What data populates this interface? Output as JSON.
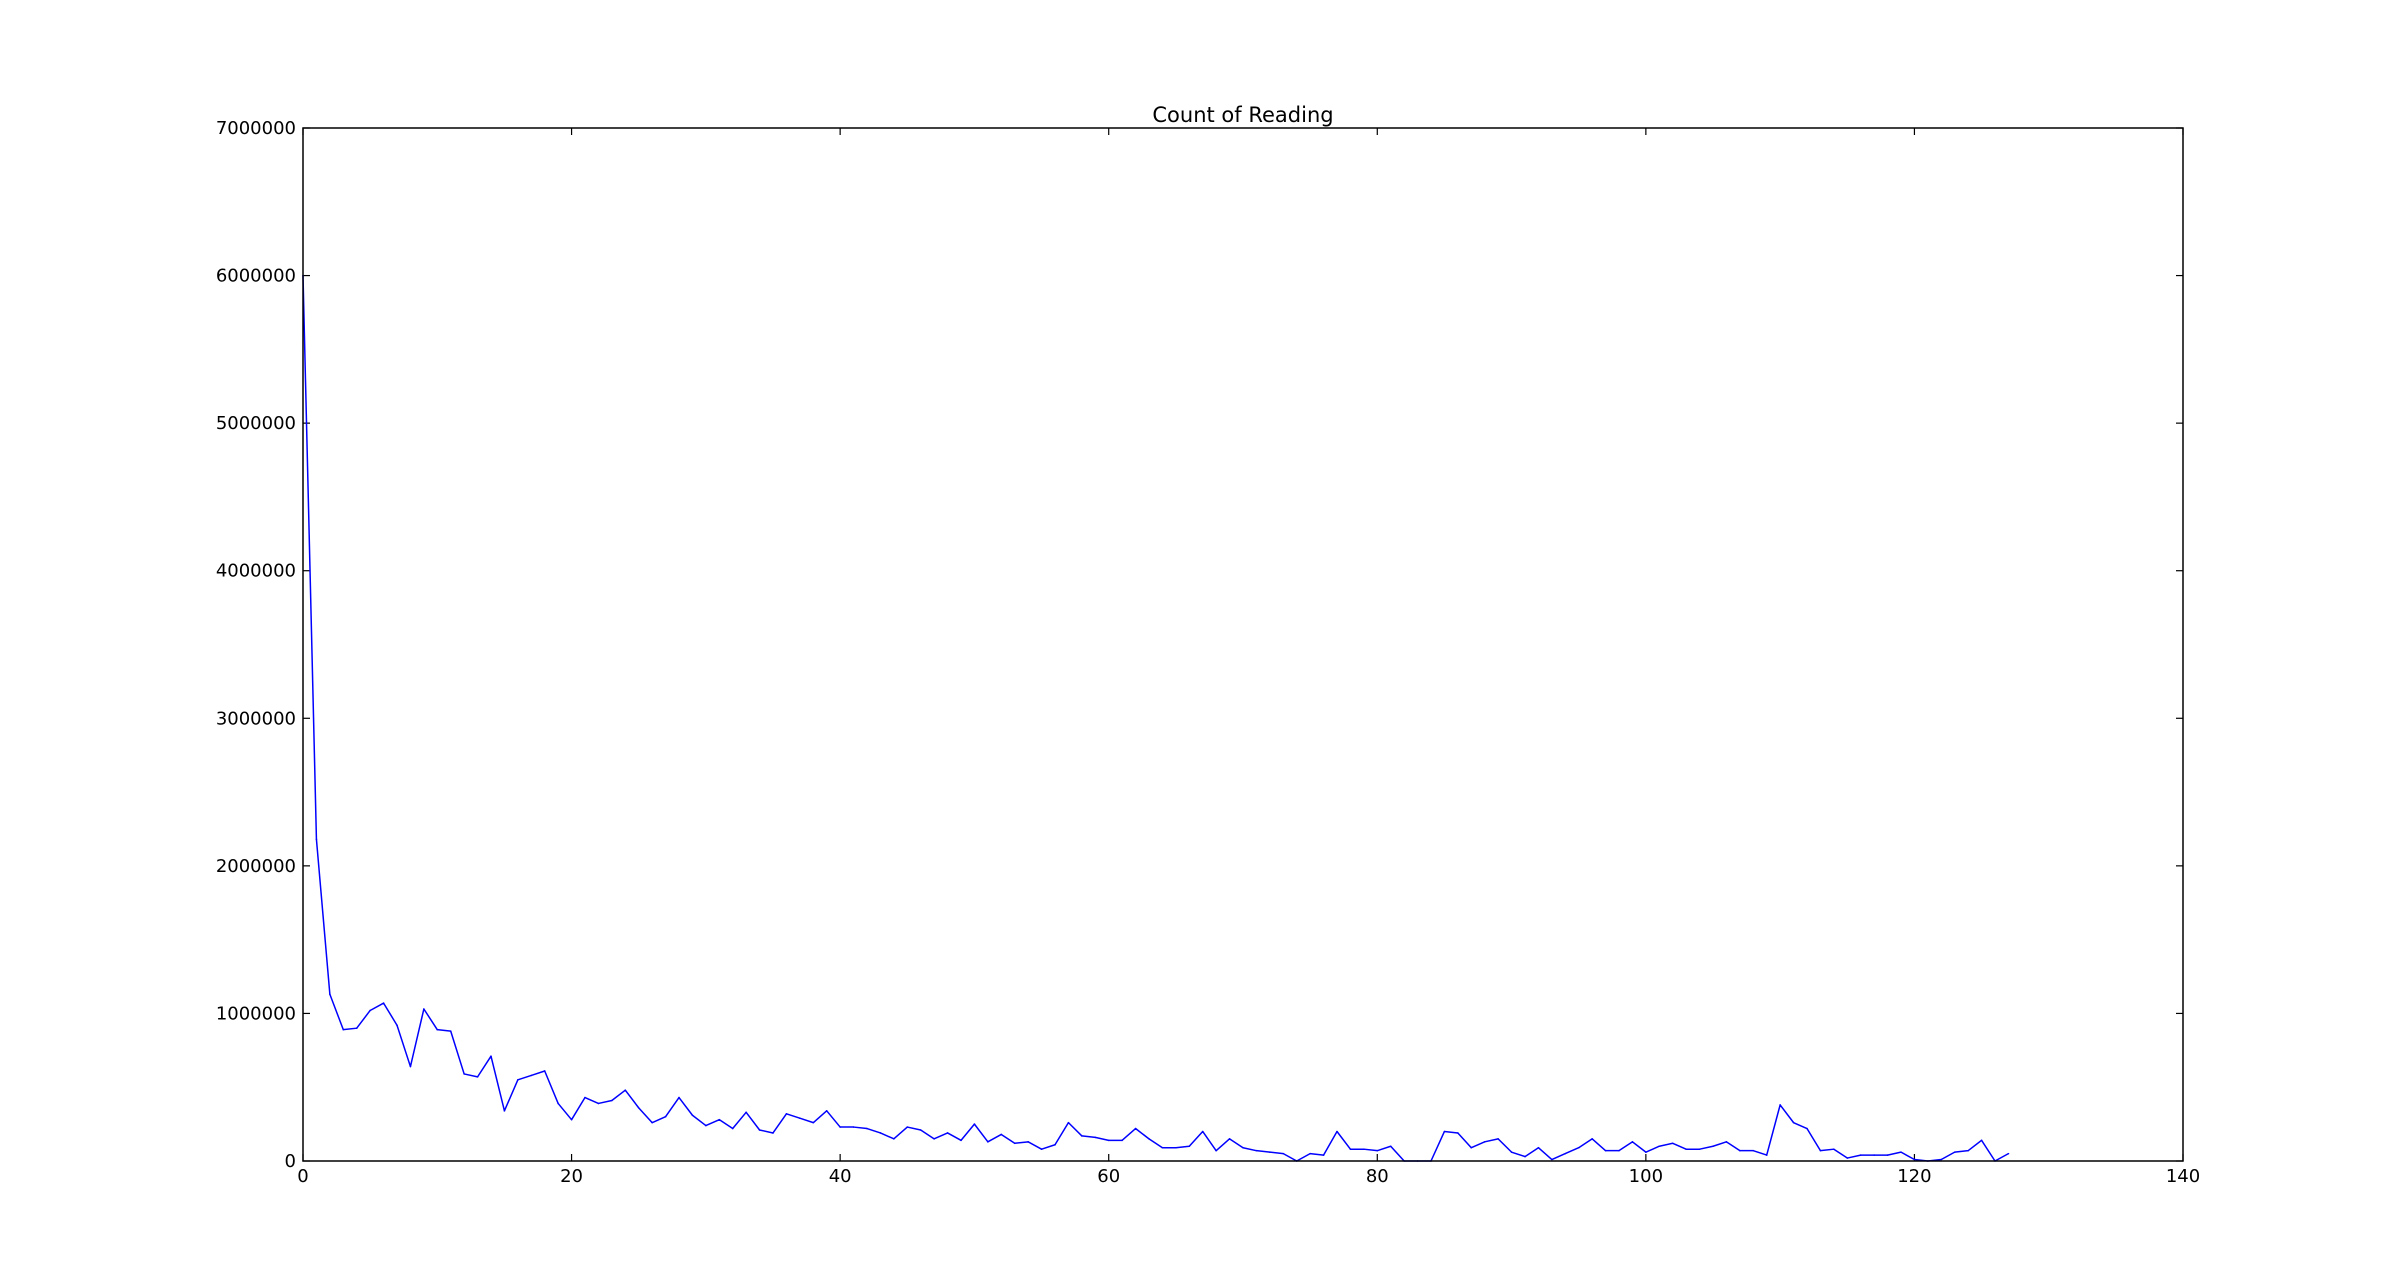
{
  "chart_data": {
    "type": "line",
    "title": "Count of Reading",
    "xlabel": "",
    "ylabel": "",
    "xlim": [
      0,
      140
    ],
    "ylim": [
      0,
      7000000
    ],
    "x_ticks": [
      0,
      20,
      40,
      60,
      80,
      100,
      120,
      140
    ],
    "y_ticks": [
      0,
      1000000,
      2000000,
      3000000,
      4000000,
      5000000,
      6000000,
      7000000
    ],
    "grid": false,
    "series": [
      {
        "color": "#0000ff",
        "x": [
          0,
          1,
          2,
          3,
          4,
          5,
          6,
          7,
          8,
          9,
          10,
          11,
          12,
          13,
          14,
          15,
          16,
          17,
          18,
          19,
          20,
          21,
          22,
          23,
          24,
          25,
          26,
          27,
          28,
          29,
          30,
          31,
          32,
          33,
          34,
          35,
          36,
          37,
          38,
          39,
          40,
          41,
          42,
          43,
          44,
          45,
          46,
          47,
          48,
          49,
          50,
          51,
          52,
          53,
          54,
          55,
          56,
          57,
          58,
          59,
          60,
          61,
          62,
          63,
          64,
          65,
          66,
          67,
          68,
          69,
          70,
          71,
          72,
          73,
          74,
          75,
          76,
          77,
          78,
          79,
          80,
          81,
          82,
          83,
          84,
          85,
          86,
          87,
          88,
          89,
          90,
          91,
          92,
          93,
          94,
          95,
          96,
          97,
          98,
          99,
          100,
          101,
          102,
          103,
          104,
          105,
          106,
          107,
          108,
          109,
          110,
          111,
          112,
          113,
          114,
          115,
          116,
          117,
          118,
          119,
          120,
          121,
          122,
          123,
          124,
          125,
          126,
          127
        ],
        "y": [
          6000000,
          2180000,
          1130000,
          890000,
          900000,
          1020000,
          1070000,
          920000,
          640000,
          1030000,
          890000,
          880000,
          590000,
          570000,
          710000,
          340000,
          550000,
          580000,
          610000,
          390000,
          280000,
          430000,
          390000,
          410000,
          480000,
          360000,
          260000,
          300000,
          430000,
          310000,
          240000,
          280000,
          220000,
          330000,
          210000,
          190000,
          320000,
          290000,
          260000,
          340000,
          230000,
          230000,
          220000,
          190000,
          150000,
          230000,
          210000,
          150000,
          190000,
          140000,
          250000,
          130000,
          180000,
          120000,
          130000,
          80000,
          110000,
          260000,
          170000,
          160000,
          140000,
          140000,
          220000,
          150000,
          90000,
          90000,
          100000,
          200000,
          70000,
          150000,
          90000,
          70000,
          60000,
          50000,
          0,
          50000,
          40000,
          200000,
          80000,
          80000,
          70000,
          100000,
          0,
          0,
          0,
          200000,
          190000,
          90000,
          130000,
          150000,
          60000,
          30000,
          90000,
          10000,
          50000,
          90000,
          150000,
          70000,
          70000,
          130000,
          60000,
          100000,
          120000,
          80000,
          80000,
          100000,
          130000,
          70000,
          70000,
          40000,
          380000,
          260000,
          220000,
          70000,
          80000,
          20000,
          40000,
          40000,
          40000,
          60000,
          10000,
          0,
          10000,
          60000,
          70000,
          140000,
          0,
          50000
        ]
      }
    ]
  }
}
